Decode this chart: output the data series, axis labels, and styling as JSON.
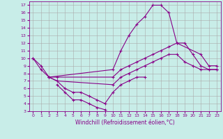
{
  "title": "",
  "xlabel": "Windchill (Refroidissement éolien,°C)",
  "ylabel": "",
  "background_color": "#c8ede8",
  "line_color": "#880088",
  "grid_color": "#aaaaaa",
  "xlim": [
    -0.5,
    23.5
  ],
  "ylim": [
    3,
    17.5
  ],
  "xticks": [
    0,
    1,
    2,
    3,
    4,
    5,
    6,
    7,
    8,
    9,
    10,
    11,
    12,
    13,
    14,
    15,
    16,
    17,
    18,
    19,
    20,
    21,
    22,
    23
  ],
  "yticks": [
    3,
    4,
    5,
    6,
    7,
    8,
    9,
    10,
    11,
    12,
    13,
    14,
    15,
    16,
    17
  ],
  "curves": [
    {
      "x": [
        0,
        1,
        2,
        10,
        11,
        12,
        13,
        14,
        15,
        16,
        17,
        18,
        21,
        22,
        23
      ],
      "y": [
        10.0,
        9.0,
        7.5,
        8.5,
        11.0,
        13.0,
        14.5,
        15.5,
        17.0,
        17.0,
        16.0,
        12.0,
        10.5,
        9.0,
        9.0
      ]
    },
    {
      "x": [
        0,
        1,
        2,
        3,
        10,
        11,
        12,
        13,
        14,
        15,
        16,
        17,
        18,
        19,
        20,
        21,
        22,
        23
      ],
      "y": [
        10.0,
        8.5,
        7.5,
        7.5,
        7.5,
        8.5,
        9.0,
        9.5,
        10.0,
        10.5,
        11.0,
        11.5,
        12.0,
        12.0,
        10.5,
        9.0,
        8.5,
        8.5
      ]
    },
    {
      "x": [
        2,
        3,
        10,
        11,
        12,
        13,
        14,
        15,
        16,
        17,
        18,
        19,
        20,
        21,
        22,
        23
      ],
      "y": [
        7.5,
        7.0,
        6.5,
        7.5,
        8.0,
        8.5,
        9.0,
        9.5,
        10.0,
        10.5,
        10.5,
        9.5,
        9.0,
        8.5,
        8.5,
        8.5
      ]
    },
    {
      "x": [
        2,
        3,
        4,
        5,
        6,
        7,
        8,
        9,
        10,
        11,
        12,
        13,
        14
      ],
      "y": [
        7.5,
        7.0,
        6.0,
        5.5,
        5.5,
        5.0,
        4.5,
        4.0,
        5.5,
        6.5,
        7.0,
        7.5,
        7.5
      ]
    },
    {
      "x": [
        3,
        4,
        5,
        6,
        7,
        8,
        9
      ],
      "y": [
        6.5,
        5.5,
        4.5,
        4.5,
        4.0,
        3.5,
        3.2
      ]
    }
  ]
}
